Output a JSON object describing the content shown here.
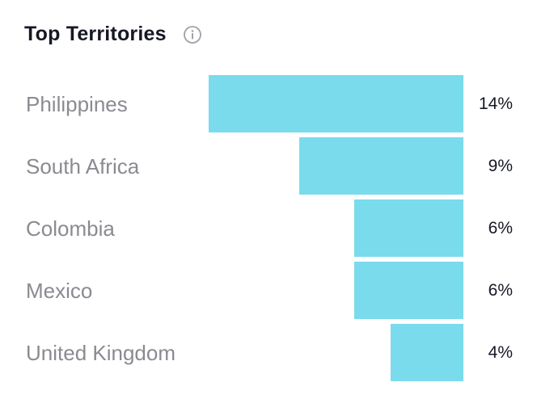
{
  "card": {
    "title": "Top Territories",
    "info_icon": "info-circle-icon"
  },
  "colors": {
    "bar": "#79dbec",
    "title": "#161823",
    "label": "#8a8b91",
    "value": "#161823",
    "icon": "#a0a1a6"
  },
  "chart_data": {
    "type": "bar",
    "orientation": "horizontal",
    "title": "Top Territories",
    "categories": [
      "Philippines",
      "South Africa",
      "Colombia",
      "Mexico",
      "United Kingdom"
    ],
    "values": [
      14,
      9,
      6,
      6,
      4
    ],
    "value_labels": [
      "14%",
      "9%",
      "6%",
      "6%",
      "4%"
    ],
    "unit": "%",
    "bar_alignment": "right",
    "grid": false,
    "legend": "none"
  }
}
